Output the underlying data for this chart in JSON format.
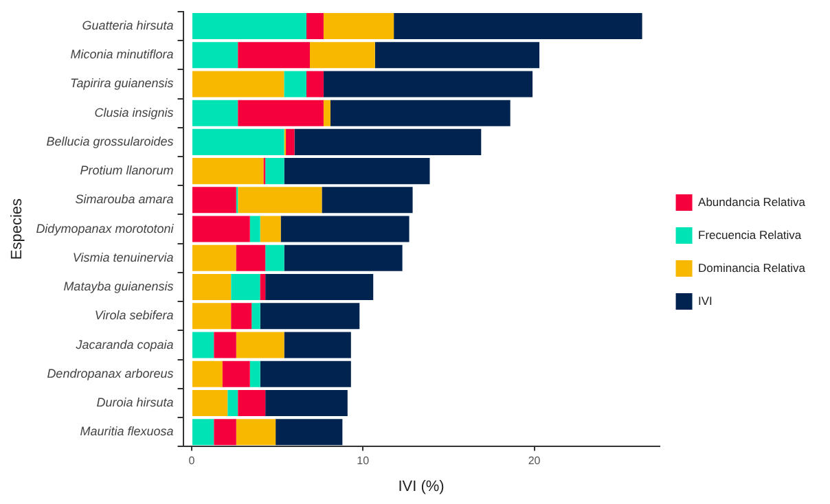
{
  "chart_data": {
    "type": "bar",
    "orientation": "horizontal",
    "xlabel": "IVI (%)",
    "ylabel": "Especies",
    "categories": [
      "Guatteria hirsuta",
      "Miconia minutiflora",
      "Tapirira guianensis",
      "Clusia insignis",
      "Bellucia grossularoides",
      "Protium llanorum",
      "Simarouba amara",
      "Didymopanax morototoni",
      "Vismia tenuinervia",
      "Matayba guianensis",
      "Virola sebifera",
      "Jacaranda copaia",
      "Dendropanax arboreus",
      "Duroia hirsuta",
      "Mauritia flexuosa"
    ],
    "series": [
      {
        "name": "Abundancia Relativa",
        "color": "#f5003c",
        "base": [
          6.7,
          2.7,
          6.7,
          2.7,
          5.5,
          4.2,
          0,
          0,
          2.6,
          4.0,
          2.3,
          1.3,
          1.8,
          2.7,
          1.3
        ],
        "values": [
          1.0,
          4.2,
          1.0,
          5.0,
          0.5,
          0.1,
          2.6,
          3.4,
          1.7,
          0.3,
          1.2,
          1.3,
          1.6,
          1.6,
          1.3
        ]
      },
      {
        "name": "Frecuencia Relativa",
        "color": "#00e3b5",
        "base": [
          0,
          0,
          5.4,
          0,
          0,
          4.3,
          2.6,
          3.4,
          4.3,
          2.3,
          3.5,
          0,
          3.4,
          2.1,
          0
        ],
        "values": [
          6.7,
          2.7,
          1.3,
          2.7,
          5.4,
          1.1,
          0.1,
          0.6,
          1.1,
          1.7,
          0.5,
          1.3,
          0.6,
          0.6,
          1.3
        ]
      },
      {
        "name": "Dominancia Relativa",
        "color": "#f8b800",
        "base": [
          7.7,
          6.9,
          0,
          7.7,
          5.4,
          0,
          2.7,
          4.0,
          0,
          0,
          0,
          2.6,
          0,
          0,
          2.6
        ],
        "values": [
          4.1,
          3.8,
          5.4,
          0.4,
          0.1,
          4.2,
          4.9,
          1.2,
          2.6,
          2.3,
          2.3,
          2.8,
          1.8,
          2.1,
          2.3
        ]
      },
      {
        "name": "IVI",
        "color": "#00234f",
        "base": [
          11.8,
          10.7,
          7.7,
          8.1,
          6.0,
          5.4,
          7.6,
          5.2,
          5.4,
          4.3,
          4.0,
          5.4,
          4.0,
          4.3,
          4.9
        ],
        "values": [
          14.5,
          9.6,
          12.2,
          10.5,
          10.9,
          8.5,
          5.3,
          7.5,
          6.9,
          6.3,
          5.8,
          3.9,
          5.3,
          4.8,
          3.9
        ]
      }
    ],
    "xlim": [
      -0.5,
      27.3
    ],
    "xticks": [
      0,
      10,
      20
    ],
    "grid": false,
    "legend": "right"
  }
}
